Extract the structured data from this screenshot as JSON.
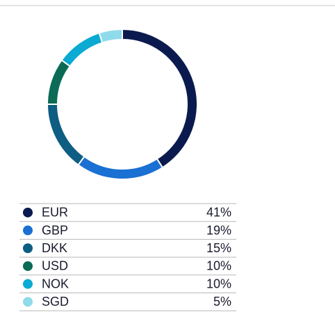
{
  "chart_data": {
    "type": "donut",
    "categories": [
      "EUR",
      "GBP",
      "DKK",
      "USD",
      "NOK",
      "SGD"
    ],
    "values": [
      41,
      19,
      15,
      10,
      10,
      5
    ],
    "value_labels": [
      "41%",
      "19%",
      "15%",
      "10%",
      "10%",
      "5%"
    ],
    "colors": [
      "#0b1a4e",
      "#1a70d3",
      "#0e5d82",
      "#0b6b56",
      "#0aaad3",
      "#8fdbeb"
    ]
  }
}
